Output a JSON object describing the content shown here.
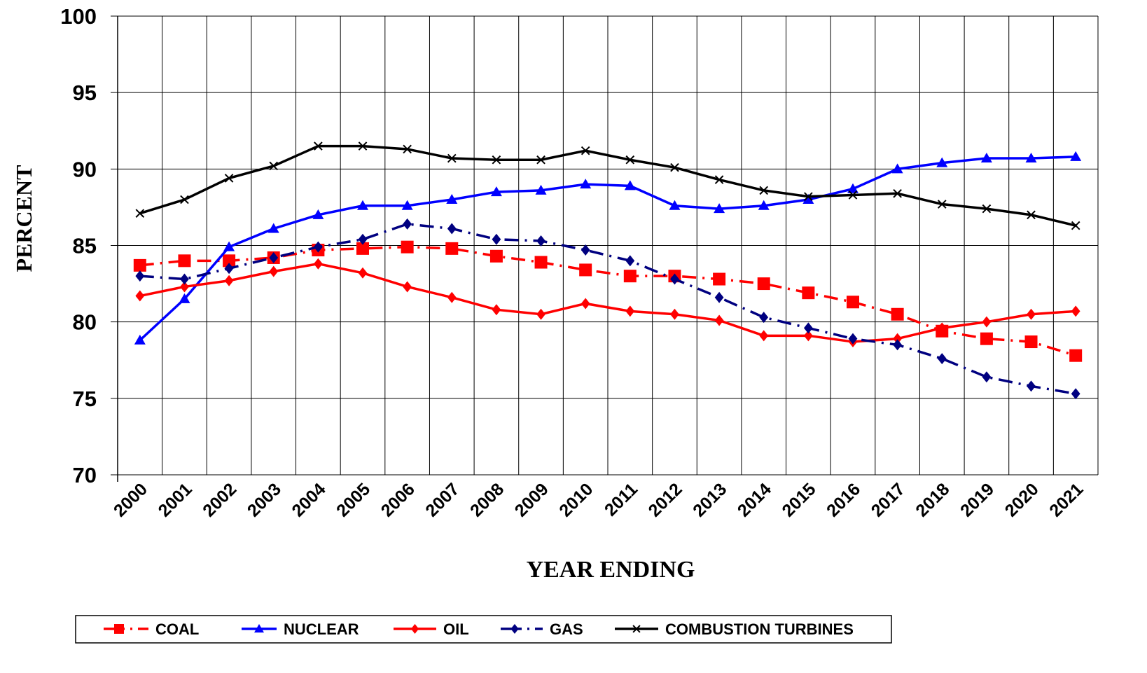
{
  "chart_data": {
    "type": "line",
    "x_label": "YEAR ENDING",
    "y_label": "PERCENT",
    "categories": [
      "2000",
      "2001",
      "2002",
      "2003",
      "2004",
      "2005",
      "2006",
      "2007",
      "2008",
      "2009",
      "2010",
      "2011",
      "2012",
      "2013",
      "2014",
      "2015",
      "2016",
      "2017",
      "2018",
      "2019",
      "2020",
      "2021"
    ],
    "ylim": [
      70,
      100
    ],
    "yticks": [
      70,
      75,
      80,
      85,
      90,
      95,
      100
    ],
    "grid": true,
    "legend": "bottom",
    "series": [
      {
        "name": "COAL",
        "color": "#ff0000",
        "marker": "square",
        "line_style": "dashdot",
        "values": [
          83.7,
          84.0,
          84.0,
          84.2,
          84.7,
          84.8,
          84.9,
          84.8,
          84.3,
          83.9,
          83.4,
          83.0,
          83.0,
          82.8,
          82.5,
          81.9,
          81.3,
          80.5,
          79.4,
          78.9,
          78.7,
          77.8
        ]
      },
      {
        "name": "NUCLEAR",
        "color": "#0000ff",
        "marker": "triangle",
        "line_style": "solid",
        "values": [
          78.8,
          81.5,
          84.9,
          86.1,
          87.0,
          87.6,
          87.6,
          88.0,
          88.5,
          88.6,
          89.0,
          88.9,
          87.6,
          87.4,
          87.6,
          88.0,
          88.7,
          90.0,
          90.4,
          90.7,
          90.7,
          90.8
        ]
      },
      {
        "name": "OIL",
        "color": "#ff0000",
        "marker": "diamond",
        "line_style": "solid",
        "values": [
          81.7,
          82.3,
          82.7,
          83.3,
          83.8,
          83.2,
          82.3,
          81.6,
          80.8,
          80.5,
          81.2,
          80.7,
          80.5,
          80.1,
          79.1,
          79.1,
          78.7,
          78.9,
          79.6,
          80.0,
          80.5,
          80.7
        ]
      },
      {
        "name": "GAS",
        "color": "#000080",
        "marker": "diamond",
        "line_style": "dashdot",
        "values": [
          83.0,
          82.8,
          83.5,
          84.2,
          84.9,
          85.4,
          86.4,
          86.1,
          85.4,
          85.3,
          84.7,
          84.0,
          82.8,
          81.6,
          80.3,
          79.6,
          78.9,
          78.5,
          77.6,
          76.4,
          75.8,
          75.3
        ]
      },
      {
        "name": "COMBUSTION TURBINES",
        "color": "#000000",
        "marker": "x",
        "line_style": "solid",
        "values": [
          87.1,
          88.0,
          89.4,
          90.2,
          91.5,
          91.5,
          91.3,
          90.7,
          90.6,
          90.6,
          91.2,
          90.6,
          90.1,
          89.3,
          88.6,
          88.2,
          88.3,
          88.4,
          87.7,
          87.4,
          87.0,
          86.3
        ]
      }
    ]
  }
}
